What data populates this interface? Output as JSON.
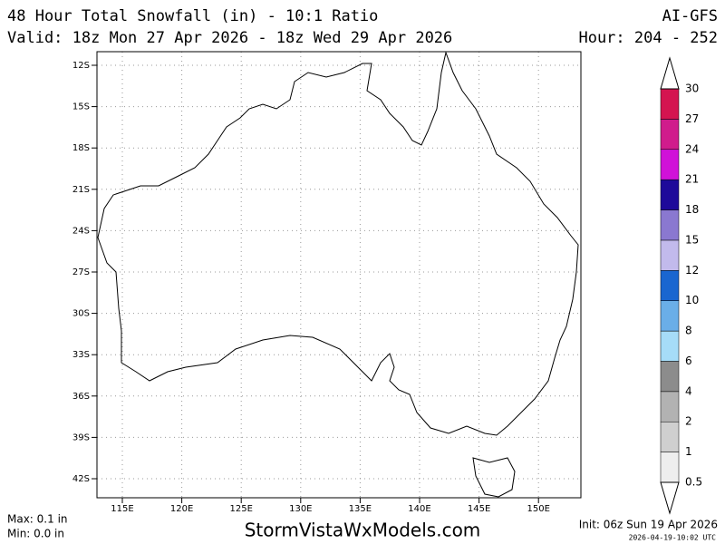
{
  "header": {
    "title": "48 Hour Total Snowfall (in) - 10:1 Ratio",
    "model": "AI-GFS",
    "valid": "Valid: 18z Mon 27 Apr 2026 - 18z Wed 29 Apr 2026",
    "hour": "Hour: 204 - 252"
  },
  "map": {
    "lat_ticks": [
      "12S",
      "15S",
      "18S",
      "21S",
      "24S",
      "27S",
      "30S",
      "33S",
      "36S",
      "39S",
      "42S"
    ],
    "lon_ticks": [
      "115E",
      "120E",
      "125E",
      "130E",
      "135E",
      "140E",
      "145E",
      "150E"
    ]
  },
  "legend": {
    "labels": [
      "0.5",
      "1",
      "2",
      "4",
      "6",
      "8",
      "10",
      "12",
      "15",
      "18",
      "21",
      "24",
      "27",
      "30"
    ],
    "colors": [
      "#eeeeee",
      "#cfcfcf",
      "#b2b2b2",
      "#8c8c8c",
      "#a6dcf8",
      "#6aaee8",
      "#1a66d0",
      "#c2baec",
      "#8a78d0",
      "#1e0a9a",
      "#d012d8",
      "#d01c8c",
      "#d41450",
      "#d41414"
    ]
  },
  "footer": {
    "max": "Max: 0.1 in",
    "min": "Min: 0.0 in",
    "site": "StormVistaWxModels.com",
    "init": "Init: 06z Sun 19 Apr 2026",
    "timestamp": "2026-04-19-10:02 UTC"
  }
}
